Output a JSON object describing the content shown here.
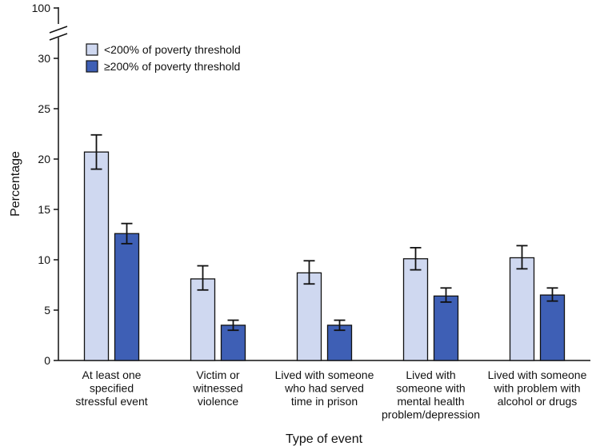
{
  "chart_data": {
    "type": "bar",
    "title": "",
    "xlabel": "Type of event",
    "ylabel": "Percentage",
    "ylim": [
      0,
      30
    ],
    "axis_break": {
      "shown": true,
      "top_label": "100"
    },
    "yticks": [
      0,
      5,
      10,
      15,
      20,
      25,
      30
    ],
    "categories": [
      [
        "At least one",
        "specified",
        "stressful event"
      ],
      [
        "Victim or",
        "witnessed",
        "violence"
      ],
      [
        "Lived with someone",
        "who had served",
        "time in prison"
      ],
      [
        "Lived with",
        "someone with",
        "mental health",
        "problem/depression"
      ],
      [
        "Lived with someone",
        "with problem with",
        "alcohol or drugs"
      ]
    ],
    "series": [
      {
        "name": "<200% of poverty threshold",
        "color": "#cfd8f0",
        "values": [
          20.7,
          8.1,
          8.7,
          10.1,
          10.2
        ],
        "ci_low": [
          19.0,
          7.0,
          7.6,
          9.0,
          9.1
        ],
        "ci_high": [
          22.4,
          9.4,
          9.9,
          11.2,
          11.4
        ]
      },
      {
        "name": "≥200% of poverty threshold",
        "color": "#3e5fb5",
        "values": [
          12.6,
          3.5,
          3.5,
          6.4,
          6.5
        ],
        "ci_low": [
          11.6,
          3.0,
          3.0,
          5.8,
          5.9
        ],
        "ci_high": [
          13.6,
          4.0,
          4.0,
          7.2,
          7.2
        ]
      }
    ],
    "legend_position": "top-left",
    "grid": false
  }
}
